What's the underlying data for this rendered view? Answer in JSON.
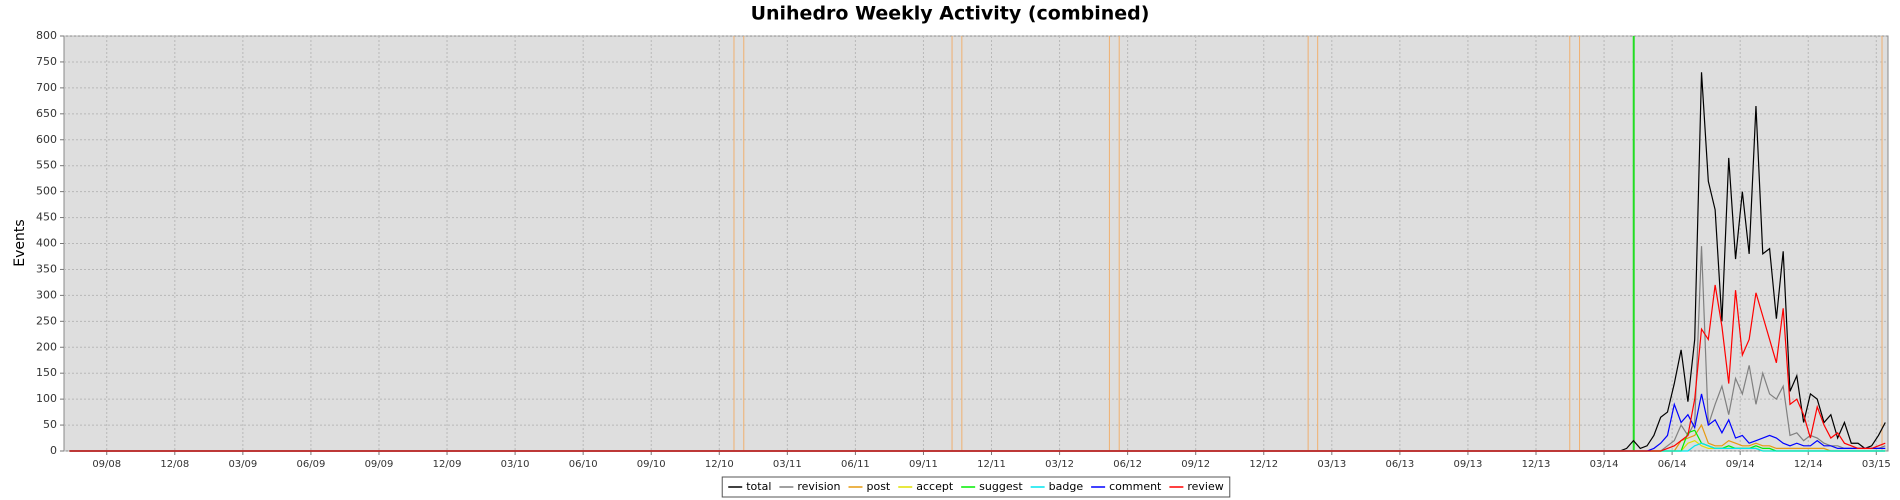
{
  "chart_data": {
    "type": "line",
    "title": "Unihedro Weekly Activity (combined)",
    "y_label": "Events",
    "grid": true,
    "legend": "bottom",
    "xlim": [
      2008.51,
      2015.21
    ],
    "ylim": [
      0,
      800
    ],
    "yticks": [
      0,
      50,
      100,
      150,
      200,
      250,
      300,
      350,
      400,
      450,
      500,
      550,
      600,
      650,
      700,
      750,
      800
    ],
    "xticks": [
      {
        "value": 2008.667,
        "label": "09/08"
      },
      {
        "value": 2008.917,
        "label": "12/08"
      },
      {
        "value": 2009.167,
        "label": "03/09"
      },
      {
        "value": 2009.417,
        "label": "06/09"
      },
      {
        "value": 2009.667,
        "label": "09/09"
      },
      {
        "value": 2009.917,
        "label": "12/09"
      },
      {
        "value": 2010.167,
        "label": "03/10"
      },
      {
        "value": 2010.417,
        "label": "06/10"
      },
      {
        "value": 2010.667,
        "label": "09/10"
      },
      {
        "value": 2010.917,
        "label": "12/10"
      },
      {
        "value": 2011.167,
        "label": "03/11"
      },
      {
        "value": 2011.417,
        "label": "06/11"
      },
      {
        "value": 2011.667,
        "label": "09/11"
      },
      {
        "value": 2011.917,
        "label": "12/11"
      },
      {
        "value": 2012.167,
        "label": "03/12"
      },
      {
        "value": 2012.417,
        "label": "06/12"
      },
      {
        "value": 2012.667,
        "label": "09/12"
      },
      {
        "value": 2012.917,
        "label": "12/12"
      },
      {
        "value": 2013.167,
        "label": "03/13"
      },
      {
        "value": 2013.417,
        "label": "06/13"
      },
      {
        "value": 2013.667,
        "label": "09/13"
      },
      {
        "value": 2013.917,
        "label": "12/13"
      },
      {
        "value": 2014.167,
        "label": "03/14"
      },
      {
        "value": 2014.417,
        "label": "06/14"
      },
      {
        "value": 2014.667,
        "label": "09/14"
      },
      {
        "value": 2014.917,
        "label": "12/14"
      },
      {
        "value": 2015.167,
        "label": "03/15"
      }
    ],
    "vlines": [
      {
        "x": 2010.971,
        "color": "#f0b070"
      },
      {
        "x": 2011.007,
        "color": "#f0b070"
      },
      {
        "x": 2011.772,
        "color": "#f0b070"
      },
      {
        "x": 2011.808,
        "color": "#f0b070"
      },
      {
        "x": 2012.35,
        "color": "#f0b070"
      },
      {
        "x": 2012.386,
        "color": "#f0b070"
      },
      {
        "x": 2013.08,
        "color": "#f0b070"
      },
      {
        "x": 2013.115,
        "color": "#f0b070"
      },
      {
        "x": 2014.041,
        "color": "#f0b070"
      },
      {
        "x": 2014.077,
        "color": "#f0b070"
      },
      {
        "x": 2015.188,
        "color": "#f0b070"
      },
      {
        "x": 2014.276,
        "color": "#22dd22"
      }
    ],
    "x": [
      2008.53,
      2014.1,
      2014.125,
      2014.15,
      2014.175,
      2014.2,
      2014.225,
      2014.25,
      2014.275,
      2014.3,
      2014.325,
      2014.35,
      2014.375,
      2014.4,
      2014.425,
      2014.45,
      2014.475,
      2014.5,
      2014.525,
      2014.55,
      2014.575,
      2014.6,
      2014.625,
      2014.65,
      2014.675,
      2014.7,
      2014.725,
      2014.75,
      2014.775,
      2014.8,
      2014.825,
      2014.85,
      2014.875,
      2014.9,
      2014.925,
      2014.95,
      2014.975,
      2015.0,
      2015.025,
      2015.05,
      2015.075,
      2015.1,
      2015.125,
      2015.15,
      2015.175,
      2015.2
    ],
    "series": [
      {
        "name": "total",
        "color": "#000000",
        "values": [
          0,
          0,
          0,
          0,
          0,
          0,
          0,
          5,
          20,
          5,
          10,
          30,
          65,
          75,
          130,
          195,
          95,
          215,
          730,
          520,
          465,
          250,
          565,
          370,
          500,
          380,
          665,
          380,
          390,
          255,
          385,
          115,
          145,
          55,
          110,
          100,
          55,
          70,
          25,
          55,
          15,
          15,
          5,
          10,
          30,
          55
        ]
      },
      {
        "name": "revision",
        "color": "#808080",
        "values": [
          0,
          0,
          0,
          0,
          0,
          0,
          0,
          0,
          0,
          0,
          0,
          0,
          0,
          10,
          20,
          50,
          30,
          55,
          395,
          50,
          90,
          125,
          70,
          140,
          110,
          165,
          90,
          150,
          110,
          100,
          125,
          30,
          35,
          20,
          30,
          25,
          15,
          10,
          10,
          5,
          5,
          5,
          5,
          5,
          5,
          10
        ]
      },
      {
        "name": "post",
        "color": "#e69a10",
        "values": [
          0,
          0,
          0,
          0,
          0,
          0,
          0,
          0,
          0,
          0,
          0,
          0,
          0,
          0,
          0,
          20,
          25,
          30,
          50,
          15,
          10,
          10,
          20,
          15,
          10,
          10,
          15,
          10,
          10,
          5,
          5,
          5,
          5,
          5,
          5,
          5,
          5,
          0,
          0,
          0,
          0,
          0,
          0,
          0,
          0,
          0
        ]
      },
      {
        "name": "accept",
        "color": "#e0e000",
        "values": [
          0,
          0,
          0,
          0,
          0,
          0,
          0,
          0,
          0,
          0,
          0,
          0,
          0,
          0,
          0,
          0,
          15,
          20,
          10,
          5,
          5,
          5,
          5,
          5,
          5,
          5,
          5,
          0,
          0,
          0,
          0,
          0,
          0,
          0,
          0,
          0,
          0,
          0,
          0,
          0,
          0,
          0,
          0,
          0,
          0,
          0
        ]
      },
      {
        "name": "suggest",
        "color": "#00ee00",
        "values": [
          0,
          0,
          0,
          0,
          0,
          0,
          0,
          0,
          0,
          0,
          0,
          0,
          0,
          0,
          0,
          0,
          35,
          40,
          15,
          10,
          5,
          5,
          10,
          5,
          5,
          5,
          10,
          5,
          5,
          0,
          0,
          0,
          0,
          0,
          0,
          0,
          0,
          0,
          0,
          0,
          0,
          0,
          0,
          0,
          0,
          0
        ]
      },
      {
        "name": "badge",
        "color": "#00e5ee",
        "values": [
          0,
          0,
          0,
          0,
          0,
          0,
          0,
          0,
          0,
          0,
          0,
          0,
          0,
          0,
          0,
          0,
          0,
          10,
          15,
          10,
          5,
          5,
          5,
          5,
          5,
          5,
          5,
          0,
          0,
          0,
          0,
          0,
          0,
          0,
          0,
          0,
          0,
          0,
          0,
          0,
          0,
          0,
          0,
          0,
          0,
          0
        ]
      },
      {
        "name": "comment",
        "color": "#0000ff",
        "values": [
          0,
          0,
          0,
          0,
          0,
          0,
          0,
          0,
          0,
          0,
          0,
          5,
          15,
          30,
          90,
          55,
          70,
          45,
          110,
          50,
          60,
          35,
          60,
          25,
          30,
          15,
          20,
          25,
          30,
          25,
          15,
          10,
          15,
          10,
          10,
          20,
          10,
          10,
          5,
          5,
          5,
          5,
          5,
          5,
          5,
          5
        ]
      },
      {
        "name": "review",
        "color": "#ff0000",
        "values": [
          0,
          0,
          0,
          0,
          0,
          0,
          0,
          0,
          0,
          0,
          0,
          0,
          0,
          5,
          10,
          20,
          30,
          100,
          235,
          215,
          320,
          240,
          130,
          310,
          185,
          215,
          305,
          260,
          215,
          170,
          275,
          90,
          100,
          70,
          25,
          85,
          50,
          25,
          35,
          15,
          10,
          5,
          5,
          5,
          10,
          15
        ]
      }
    ]
  }
}
